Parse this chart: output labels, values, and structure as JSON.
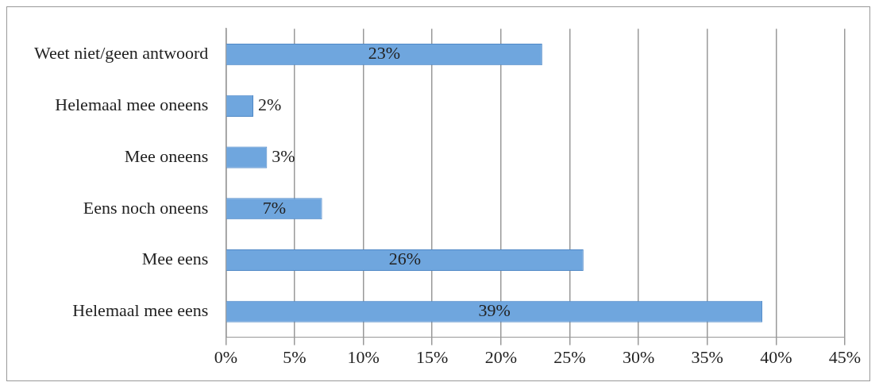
{
  "chart_data": {
    "type": "bar",
    "orientation": "horizontal",
    "categories": [
      "Weet niet/geen antwoord",
      "Helemaal mee oneens",
      "Mee oneens",
      "Eens noch oneens",
      "Mee eens",
      "Helemaal mee eens"
    ],
    "values": [
      23,
      2,
      3,
      7,
      26,
      39
    ],
    "value_labels": [
      "23%",
      "2%",
      "3%",
      "7%",
      "26%",
      "39%"
    ],
    "color": "#6fa6de",
    "xlim": [
      0,
      45
    ],
    "xticks": [
      {
        "value": 0,
        "label": "0%"
      },
      {
        "value": 5,
        "label": "5%"
      },
      {
        "value": 10,
        "label": "10%"
      },
      {
        "value": 15,
        "label": "15%"
      },
      {
        "value": 20,
        "label": "20%"
      },
      {
        "value": 25,
        "label": "25%"
      },
      {
        "value": 30,
        "label": "30%"
      },
      {
        "value": 35,
        "label": "35%"
      },
      {
        "value": 40,
        "label": "40%"
      },
      {
        "value": 45,
        "label": "45%"
      }
    ],
    "grid": "x",
    "legend": false
  }
}
